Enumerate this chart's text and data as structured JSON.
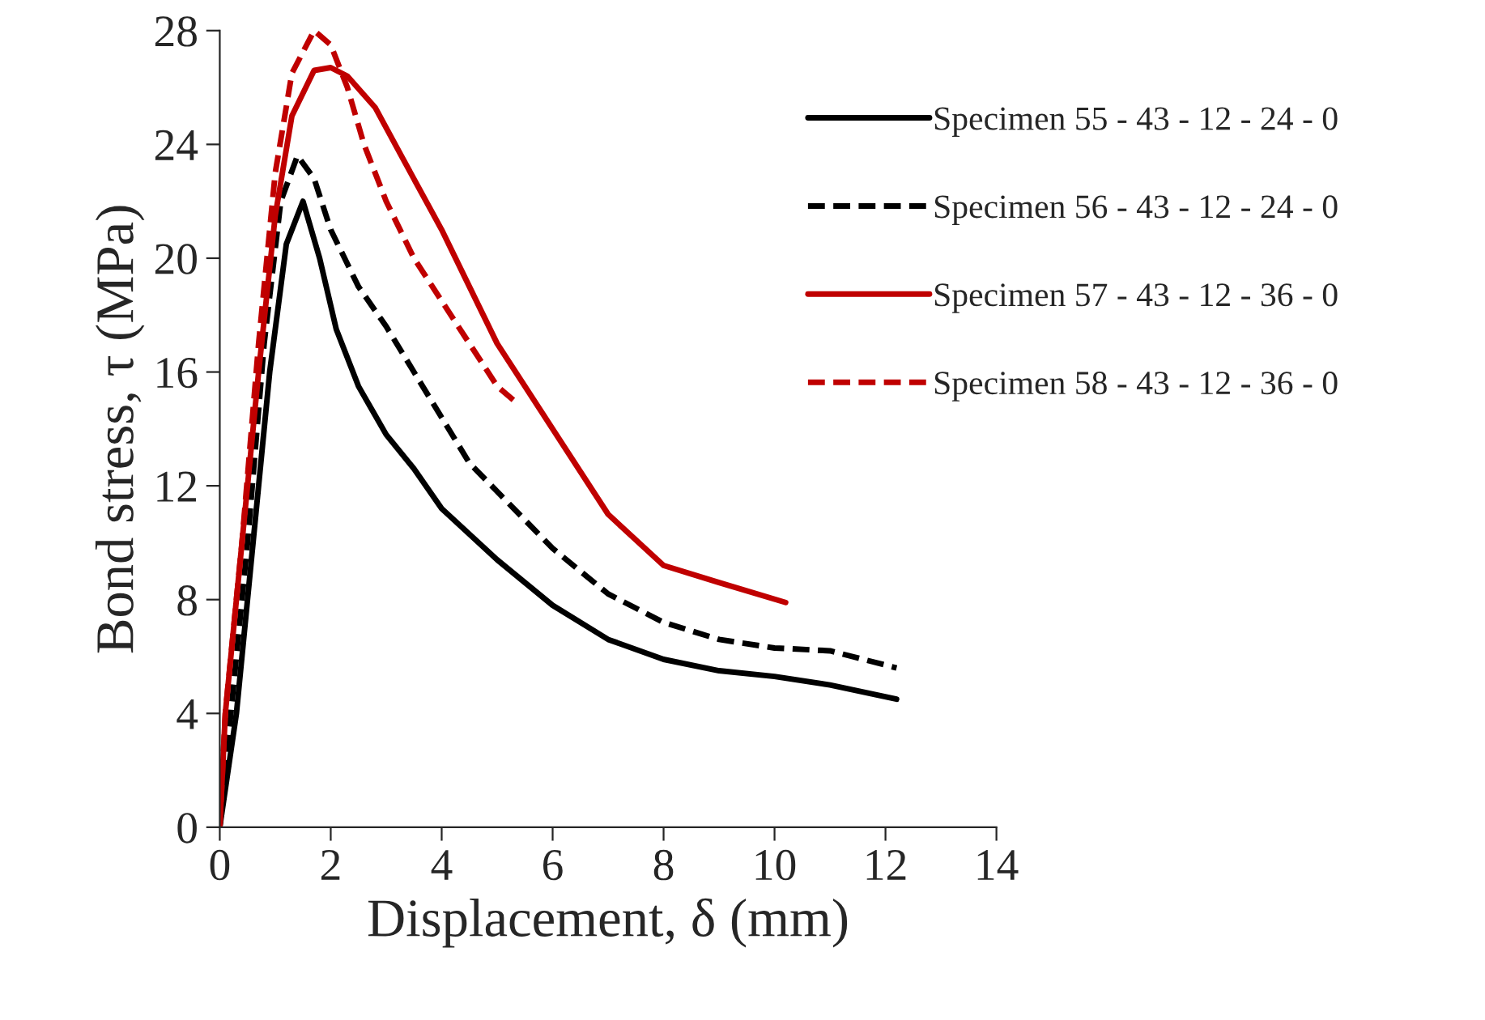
{
  "chart_data": {
    "type": "line",
    "xlabel": "Displacement, δ (mm)",
    "ylabel": "Bond stress, τ (MPa)",
    "xlim": [
      0,
      14
    ],
    "xticks": [
      0,
      2,
      4,
      6,
      8,
      10,
      12,
      14
    ],
    "ylim": [
      0,
      28
    ],
    "yticks": [
      0,
      4,
      8,
      12,
      16,
      20,
      24,
      28
    ],
    "grid": false,
    "legend": "right",
    "marker": "none",
    "series": [
      {
        "name": "Specimen 55 - 43 - 12 - 24 - 0",
        "color": "#000000",
        "line_style": "solid",
        "x": [
          0,
          0.3,
          0.6,
          0.9,
          1.2,
          1.5,
          1.8,
          2.1,
          2.5,
          3,
          3.5,
          4,
          5,
          6,
          7,
          8,
          9,
          10,
          11,
          12.2
        ],
        "values": [
          0,
          4,
          10,
          16,
          20.5,
          22,
          20,
          17.5,
          15.5,
          13.8,
          12.6,
          11.2,
          9.4,
          7.8,
          6.6,
          5.9,
          5.5,
          5.3,
          5,
          4.5
        ]
      },
      {
        "name": "Specimen 56 - 43 - 12 - 24 - 0",
        "color": "#000000",
        "line_style": "dashed",
        "x": [
          0,
          0.2,
          0.5,
          0.8,
          1.1,
          1.4,
          1.7,
          2,
          2.5,
          3,
          3.5,
          4,
          4.5,
          5,
          6,
          7,
          8,
          9,
          10,
          11,
          12.2
        ],
        "values": [
          0,
          4,
          10,
          17,
          22,
          23.6,
          22.8,
          21,
          19,
          17.6,
          16,
          14.4,
          12.8,
          11.8,
          9.8,
          8.2,
          7.2,
          6.6,
          6.3,
          6.2,
          5.6
        ]
      },
      {
        "name": "Specimen 57 - 43 - 12 - 36 - 0",
        "color": "#c00000",
        "line_style": "solid",
        "x": [
          0,
          0.1,
          0.4,
          0.7,
          1,
          1.3,
          1.7,
          2,
          2.3,
          2.8,
          3.3,
          4,
          4.5,
          5,
          6,
          7,
          8,
          9,
          10.2
        ],
        "values": [
          0,
          4,
          10,
          16,
          21.5,
          25,
          26.6,
          26.7,
          26.4,
          25.3,
          23.5,
          21,
          19,
          17,
          14,
          11,
          9.2,
          8.6,
          7.9
        ]
      },
      {
        "name": "Specimen 58 - 43 - 12 - 36 - 0",
        "color": "#c00000",
        "line_style": "dashed",
        "x": [
          0,
          0.1,
          0.4,
          0.7,
          1,
          1.3,
          1.7,
          2,
          2.3,
          2.6,
          3,
          3.5,
          4,
          4.5,
          5,
          5.3
        ],
        "values": [
          0,
          4,
          10,
          17,
          23,
          26.5,
          28,
          27.5,
          26,
          24,
          22,
          20,
          18.5,
          17,
          15.5,
          15
        ]
      }
    ]
  }
}
